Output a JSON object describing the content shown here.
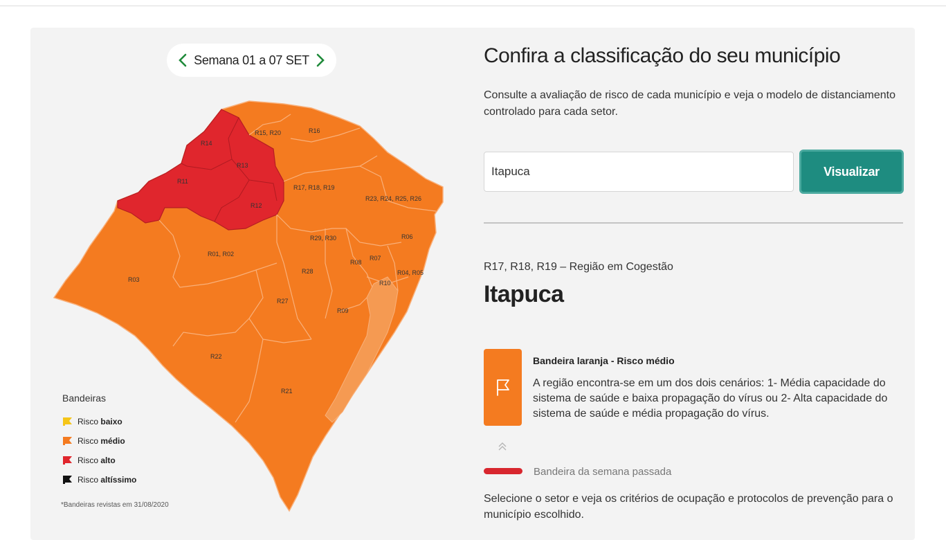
{
  "week_selector": {
    "label": "Semana 01 a 07 SET",
    "prev_icon": "chevron-left-icon",
    "next_icon": "chevron-right-icon"
  },
  "map": {
    "regions": [
      {
        "label": "R14",
        "risk": "alto"
      },
      {
        "label": "R13",
        "risk": "alto"
      },
      {
        "label": "R11",
        "risk": "alto"
      },
      {
        "label": "R12",
        "risk": "alto"
      },
      {
        "label": "R15, R20",
        "risk": "médio"
      },
      {
        "label": "R16",
        "risk": "médio"
      },
      {
        "label": "R17, R18, R19",
        "risk": "médio"
      },
      {
        "label": "R23, R24, R25, R26",
        "risk": "médio"
      },
      {
        "label": "R06",
        "risk": "médio"
      },
      {
        "label": "R29, R30",
        "risk": "médio"
      },
      {
        "label": "R01, R02",
        "risk": "médio"
      },
      {
        "label": "R08",
        "risk": "médio"
      },
      {
        "label": "R07",
        "risk": "médio"
      },
      {
        "label": "R03",
        "risk": "médio"
      },
      {
        "label": "R28",
        "risk": "médio"
      },
      {
        "label": "R04, R05",
        "risk": "médio"
      },
      {
        "label": "R10",
        "risk": "médio"
      },
      {
        "label": "R27",
        "risk": "médio"
      },
      {
        "label": "R09",
        "risk": "médio"
      },
      {
        "label": "R22",
        "risk": "médio"
      },
      {
        "label": "R21",
        "risk": "médio"
      }
    ],
    "colors": {
      "alto": "#e0262d",
      "medio": "#f47b20",
      "border": "#f9b07a",
      "alto_border": "#b51d23"
    }
  },
  "legend": {
    "title": "Bandeiras",
    "items": [
      {
        "prefix": "Risco",
        "level": "baixo",
        "color": "#f5c518"
      },
      {
        "prefix": "Risco",
        "level": "médio",
        "color": "#f47b20"
      },
      {
        "prefix": "Risco",
        "level": "alto",
        "color": "#e0262d"
      },
      {
        "prefix": "Risco",
        "level": "altíssimo",
        "color": "#111111"
      }
    ],
    "footnote": "*Bandeiras revistas em 31/08/2020"
  },
  "main": {
    "title": "Confira a classificação do seu município",
    "description": "Consulte a avaliação de risco de cada município e veja o modelo de distanciamento controlado para cada setor.",
    "search_value": "Itapuca",
    "button_label": "Visualizar",
    "region_line": "R17, R18, R19 – Região em Cogestão",
    "city": "Itapuca"
  },
  "flag": {
    "title": "Bandeira laranja - Risco médio",
    "description": "A região encontra-se em um dos dois cenários: 1- Média capacidade do sistema de saúde e baixa propagação do vírus ou 2- Alta capacidade do sistema de saúde e média propagação do vírus.",
    "color": "#f47b20"
  },
  "previous_week": {
    "label": "Bandeira da semana passada",
    "color": "#d8262e"
  },
  "footer_text": "Selecione o setor e veja os critérios de ocupação e protocolos de prevenção para o município escolhido."
}
